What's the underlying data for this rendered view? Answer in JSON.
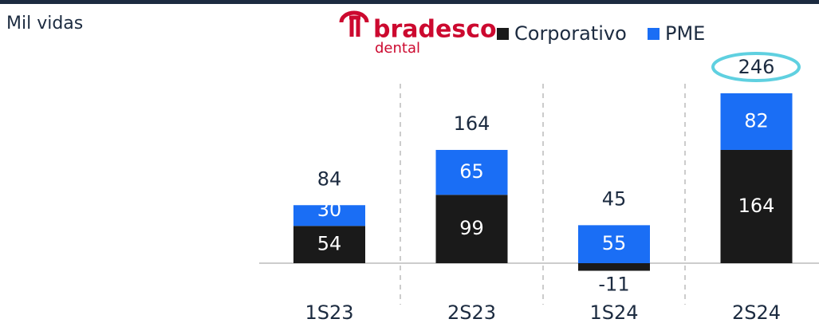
{
  "chart_data": {
    "type": "stacked_bar",
    "title": "Mil vidas",
    "logo": {
      "brand": "bradesco",
      "product": "dental"
    },
    "categories": [
      "1S23",
      "2S23",
      "1S24",
      "2S24"
    ],
    "series": [
      {
        "name": "Corporativo",
        "color": "#1a1a1a",
        "values": [
          54,
          99,
          -11,
          164
        ]
      },
      {
        "name": "PME",
        "color": "#1a6ef5",
        "values": [
          30,
          65,
          55,
          82
        ]
      }
    ],
    "totals": [
      84,
      164,
      45,
      246
    ]
  }
}
